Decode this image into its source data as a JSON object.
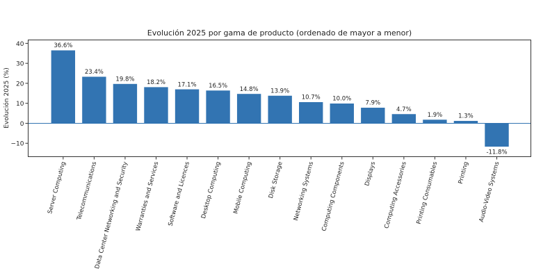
{
  "chart_data": {
    "type": "bar",
    "title": "Evolución 2025 por gama de producto (ordenado de mayor a menor)",
    "xlabel": "",
    "ylabel": "Evolución 2025 (%)",
    "categories": [
      "Server Computing",
      "Telecommunications",
      "Data Center Networking and Security",
      "Warranties and Services",
      "Software and Licences",
      "Desktop Computing",
      "Mobile Computing",
      "Disk Storage",
      "Networking Systems",
      "Computing Components",
      "Displays",
      "Computing Accessories",
      "Printing Consumables",
      "Printing",
      "Audio-Video Systems"
    ],
    "values": [
      36.6,
      23.4,
      19.8,
      18.2,
      17.1,
      16.5,
      14.8,
      13.9,
      10.7,
      10.0,
      7.9,
      4.7,
      1.9,
      1.3,
      -11.8
    ],
    "data_labels": [
      "36.6%",
      "23.4%",
      "19.8%",
      "18.2%",
      "17.1%",
      "16.5%",
      "14.8%",
      "13.9%",
      "10.7%",
      "10.0%",
      "7.9%",
      "4.7%",
      "1.9%",
      "1.3%",
      "-11.8%"
    ],
    "ylim": [
      -16.7,
      41.7
    ],
    "yticks": [
      -10,
      0,
      10,
      20,
      30,
      40
    ],
    "ytick_labels": [
      "−10",
      "0",
      "10",
      "20",
      "30",
      "40"
    ],
    "zero_line": true,
    "grid": false,
    "bar_color": "#3274b2",
    "x_label_rotation": 75
  }
}
